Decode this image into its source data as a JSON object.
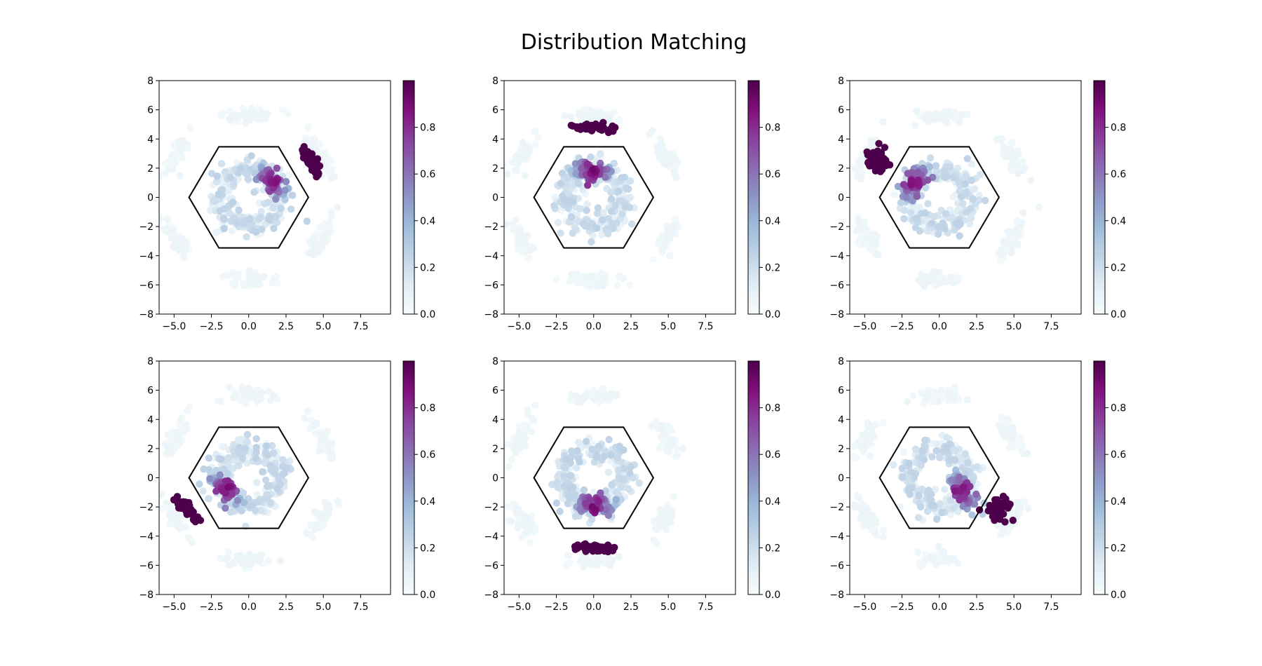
{
  "figure": {
    "title": "Distribution Matching"
  },
  "colormap": {
    "name": "BuPu",
    "stops": [
      "#f7fcfd",
      "#e0ecf4",
      "#bfd3e6",
      "#9ebcda",
      "#8c96c6",
      "#8c6bb1",
      "#88419d",
      "#810f7c",
      "#4d004b"
    ],
    "ticks": [
      "0.0",
      "0.2",
      "0.4",
      "0.6",
      "0.8"
    ]
  },
  "chart_data": [
    {
      "type": "scatter",
      "panel": "top-left",
      "xlim": [
        -6.0,
        9.5
      ],
      "ylim": [
        -8,
        8
      ],
      "xticks": [
        "−5.0",
        "−2.5",
        "0.0",
        "2.5",
        "5.0",
        "7.5"
      ],
      "yticks": [
        "−8",
        "−6",
        "−4",
        "−2",
        "0",
        "2",
        "4",
        "6",
        "8"
      ],
      "hexagon": {
        "radius": 4,
        "center": [
          0,
          0
        ]
      },
      "target_cluster": {
        "center": [
          4.2,
          2.4
        ],
        "angle_deg": -60,
        "spread": [
          1.0,
          0.25
        ],
        "value": 1.0
      },
      "inner_hotspot": {
        "center": [
          1.6,
          1.1
        ],
        "angle_deg": -45
      },
      "background_ring_radius": 5.6
    },
    {
      "type": "scatter",
      "panel": "top-center",
      "xlim": [
        -6.0,
        9.5
      ],
      "ylim": [
        -8,
        8
      ],
      "xticks": [
        "−5.0",
        "−2.5",
        "0.0",
        "2.5",
        "5.0",
        "7.5"
      ],
      "yticks": [
        "−8",
        "−6",
        "−4",
        "−2",
        "0",
        "2",
        "4",
        "6",
        "8"
      ],
      "hexagon": {
        "radius": 4,
        "center": [
          0,
          0
        ]
      },
      "target_cluster": {
        "center": [
          0.0,
          4.8
        ],
        "angle_deg": 0,
        "spread": [
          1.3,
          0.2
        ],
        "value": 1.0
      },
      "inner_hotspot": {
        "center": [
          0.0,
          1.8
        ],
        "angle_deg": 0
      },
      "background_ring_radius": 5.6
    },
    {
      "type": "scatter",
      "panel": "top-right",
      "xlim": [
        -6.0,
        9.5
      ],
      "ylim": [
        -8,
        8
      ],
      "xticks": [
        "−5.0",
        "−2.5",
        "0.0",
        "2.5",
        "5.0",
        "7.5"
      ],
      "yticks": [
        "−8",
        "−6",
        "−4",
        "−2",
        "0",
        "2",
        "4",
        "6",
        "8"
      ],
      "hexagon": {
        "radius": 4,
        "center": [
          0,
          0
        ]
      },
      "target_cluster": {
        "center": [
          -4.3,
          2.4
        ],
        "angle_deg": 30,
        "spread": [
          0.7,
          0.6
        ],
        "value": 1.0
      },
      "inner_hotspot": {
        "center": [
          -1.7,
          1.0
        ],
        "angle_deg": 60
      },
      "background_ring_radius": 5.6
    },
    {
      "type": "scatter",
      "panel": "bottom-left",
      "xlim": [
        -6.0,
        9.5
      ],
      "ylim": [
        -8,
        8
      ],
      "xticks": [
        "−5.0",
        "−2.5",
        "0.0",
        "2.5",
        "5.0",
        "7.5"
      ],
      "yticks": [
        "−8",
        "−6",
        "−4",
        "−2",
        "0",
        "2",
        "4",
        "6",
        "8"
      ],
      "hexagon": {
        "radius": 4,
        "center": [
          0,
          0
        ]
      },
      "target_cluster": {
        "center": [
          -4.2,
          -2.1
        ],
        "angle_deg": -40,
        "spread": [
          1.0,
          0.25
        ],
        "value": 1.0
      },
      "inner_hotspot": {
        "center": [
          -1.6,
          -0.8
        ],
        "angle_deg": -45
      },
      "background_ring_radius": 5.6
    },
    {
      "type": "scatter",
      "panel": "bottom-center",
      "xlim": [
        -6.0,
        9.5
      ],
      "ylim": [
        -8,
        8
      ],
      "xticks": [
        "−5.0",
        "−2.5",
        "0.0",
        "2.5",
        "5.0",
        "7.5"
      ],
      "yticks": [
        "−8",
        "−6",
        "−4",
        "−2",
        "0",
        "2",
        "4",
        "6",
        "8"
      ],
      "hexagon": {
        "radius": 4,
        "center": [
          0,
          0
        ]
      },
      "target_cluster": {
        "center": [
          0.0,
          -4.8
        ],
        "angle_deg": -5,
        "spread": [
          1.3,
          0.2
        ],
        "value": 1.0
      },
      "inner_hotspot": {
        "center": [
          0.0,
          -1.8
        ],
        "angle_deg": 0
      },
      "background_ring_radius": 5.6
    },
    {
      "type": "scatter",
      "panel": "bottom-right",
      "xlim": [
        -6.0,
        9.5
      ],
      "ylim": [
        -8,
        8
      ],
      "xticks": [
        "−5.0",
        "−2.5",
        "0.0",
        "2.5",
        "5.0",
        "7.5"
      ],
      "yticks": [
        "−8",
        "−6",
        "−4",
        "−2",
        "0",
        "2",
        "4",
        "6",
        "8"
      ],
      "hexagon": {
        "radius": 4,
        "center": [
          0,
          0
        ]
      },
      "target_cluster": {
        "center": [
          4.0,
          -2.2
        ],
        "angle_deg": 60,
        "spread": [
          0.7,
          0.6
        ],
        "value": 1.0
      },
      "inner_hotspot": {
        "center": [
          1.6,
          -0.9
        ],
        "angle_deg": -60
      },
      "background_ring_radius": 5.6
    }
  ]
}
